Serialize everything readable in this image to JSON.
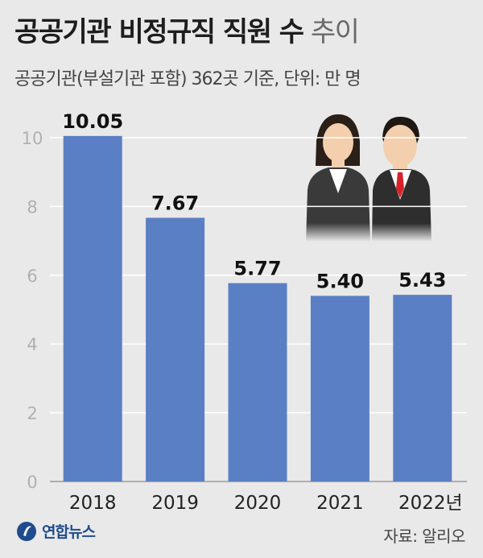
{
  "header": {
    "title": "공공기관 비정규직 직원 수",
    "title_suffix": "추이",
    "subtitle": "공공기관(부설기관 포함) 362곳 기준, 단위: 만 명"
  },
  "footer": {
    "logo_text": "연합뉴스",
    "source": "자료: 알리오"
  },
  "colors": {
    "bar": "#5b7fc4",
    "background": "#e9e9e9",
    "grid": "#ffffff",
    "axis_label": "#b0b0b0"
  },
  "chart_data": {
    "type": "bar",
    "categories": [
      "2018",
      "2019",
      "2020",
      "2021",
      "2022년"
    ],
    "values": [
      10.05,
      7.67,
      5.77,
      5.4,
      5.43
    ],
    "value_labels": [
      "10.05",
      "7.67",
      "5.77",
      "5.40",
      "5.43"
    ],
    "yticks": [
      "0",
      "2",
      "4",
      "6",
      "8",
      "10"
    ],
    "ylim": [
      0,
      10.6
    ],
    "grid": true,
    "xlabel": "",
    "ylabel": ""
  },
  "illustration": {
    "icon": "office-workers-icon"
  }
}
